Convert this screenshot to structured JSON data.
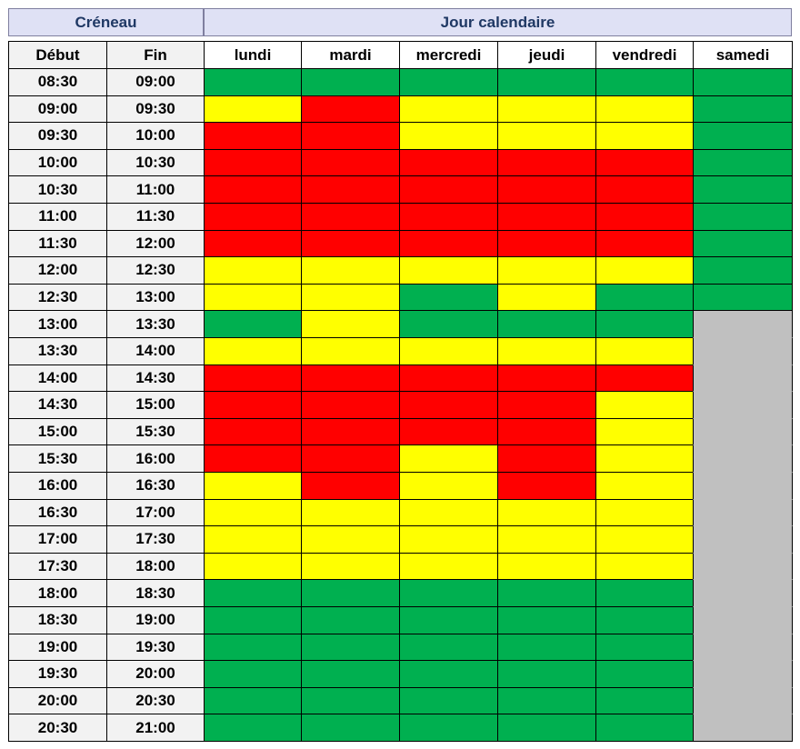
{
  "header": {
    "slot": "Créneau",
    "days_group": "Jour calendaire"
  },
  "columns": {
    "start": "Début",
    "end": "Fin",
    "days": [
      "lundi",
      "mardi",
      "mercredi",
      "jeudi",
      "vendredi",
      "samedi"
    ]
  },
  "rows": [
    {
      "start": "08:30",
      "end": "09:00",
      "colors": [
        "#00b050",
        "#00b050",
        "#00b050",
        "#00b050",
        "#00b050",
        "#00b050"
      ]
    },
    {
      "start": "09:00",
      "end": "09:30",
      "colors": [
        "#ffff00",
        "#ff0000",
        "#ffff00",
        "#ffff00",
        "#ffff00",
        "#00b050"
      ]
    },
    {
      "start": "09:30",
      "end": "10:00",
      "colors": [
        "#ff0000",
        "#ff0000",
        "#ffff00",
        "#ffff00",
        "#ffff00",
        "#00b050"
      ]
    },
    {
      "start": "10:00",
      "end": "10:30",
      "colors": [
        "#ff0000",
        "#ff0000",
        "#ff0000",
        "#ff0000",
        "#ff0000",
        "#00b050"
      ]
    },
    {
      "start": "10:30",
      "end": "11:00",
      "colors": [
        "#ff0000",
        "#ff0000",
        "#ff0000",
        "#ff0000",
        "#ff0000",
        "#00b050"
      ]
    },
    {
      "start": "11:00",
      "end": "11:30",
      "colors": [
        "#ff0000",
        "#ff0000",
        "#ff0000",
        "#ff0000",
        "#ff0000",
        "#00b050"
      ]
    },
    {
      "start": "11:30",
      "end": "12:00",
      "colors": [
        "#ff0000",
        "#ff0000",
        "#ff0000",
        "#ff0000",
        "#ff0000",
        "#00b050"
      ]
    },
    {
      "start": "12:00",
      "end": "12:30",
      "colors": [
        "#ffff00",
        "#ffff00",
        "#ffff00",
        "#ffff00",
        "#ffff00",
        "#00b050"
      ]
    },
    {
      "start": "12:30",
      "end": "13:00",
      "colors": [
        "#ffff00",
        "#ffff00",
        "#00b050",
        "#ffff00",
        "#00b050",
        "#00b050"
      ]
    },
    {
      "start": "13:00",
      "end": "13:30",
      "colors": [
        "#00b050",
        "#ffff00",
        "#00b050",
        "#00b050",
        "#00b050",
        "#c0c0c0"
      ]
    },
    {
      "start": "13:30",
      "end": "14:00",
      "colors": [
        "#ffff00",
        "#ffff00",
        "#ffff00",
        "#ffff00",
        "#ffff00",
        "#c0c0c0"
      ]
    },
    {
      "start": "14:00",
      "end": "14:30",
      "colors": [
        "#ff0000",
        "#ff0000",
        "#ff0000",
        "#ff0000",
        "#ff0000",
        "#c0c0c0"
      ]
    },
    {
      "start": "14:30",
      "end": "15:00",
      "colors": [
        "#ff0000",
        "#ff0000",
        "#ff0000",
        "#ff0000",
        "#ffff00",
        "#c0c0c0"
      ]
    },
    {
      "start": "15:00",
      "end": "15:30",
      "colors": [
        "#ff0000",
        "#ff0000",
        "#ff0000",
        "#ff0000",
        "#ffff00",
        "#c0c0c0"
      ]
    },
    {
      "start": "15:30",
      "end": "16:00",
      "colors": [
        "#ff0000",
        "#ff0000",
        "#ffff00",
        "#ff0000",
        "#ffff00",
        "#c0c0c0"
      ]
    },
    {
      "start": "16:00",
      "end": "16:30",
      "colors": [
        "#ffff00",
        "#ff0000",
        "#ffff00",
        "#ff0000",
        "#ffff00",
        "#c0c0c0"
      ]
    },
    {
      "start": "16:30",
      "end": "17:00",
      "colors": [
        "#ffff00",
        "#ffff00",
        "#ffff00",
        "#ffff00",
        "#ffff00",
        "#c0c0c0"
      ]
    },
    {
      "start": "17:00",
      "end": "17:30",
      "colors": [
        "#ffff00",
        "#ffff00",
        "#ffff00",
        "#ffff00",
        "#ffff00",
        "#c0c0c0"
      ]
    },
    {
      "start": "17:30",
      "end": "18:00",
      "colors": [
        "#ffff00",
        "#ffff00",
        "#ffff00",
        "#ffff00",
        "#ffff00",
        "#c0c0c0"
      ]
    },
    {
      "start": "18:00",
      "end": "18:30",
      "colors": [
        "#00b050",
        "#00b050",
        "#00b050",
        "#00b050",
        "#00b050",
        "#c0c0c0"
      ]
    },
    {
      "start": "18:30",
      "end": "19:00",
      "colors": [
        "#00b050",
        "#00b050",
        "#00b050",
        "#00b050",
        "#00b050",
        "#c0c0c0"
      ]
    },
    {
      "start": "19:00",
      "end": "19:30",
      "colors": [
        "#00b050",
        "#00b050",
        "#00b050",
        "#00b050",
        "#00b050",
        "#c0c0c0"
      ]
    },
    {
      "start": "19:30",
      "end": "20:00",
      "colors": [
        "#00b050",
        "#00b050",
        "#00b050",
        "#00b050",
        "#00b050",
        "#c0c0c0"
      ]
    },
    {
      "start": "20:00",
      "end": "20:30",
      "colors": [
        "#00b050",
        "#00b050",
        "#00b050",
        "#00b050",
        "#00b050",
        "#c0c0c0"
      ]
    },
    {
      "start": "20:30",
      "end": "21:00",
      "colors": [
        "#00b050",
        "#00b050",
        "#00b050",
        "#00b050",
        "#00b050",
        "#c0c0c0"
      ]
    }
  ]
}
